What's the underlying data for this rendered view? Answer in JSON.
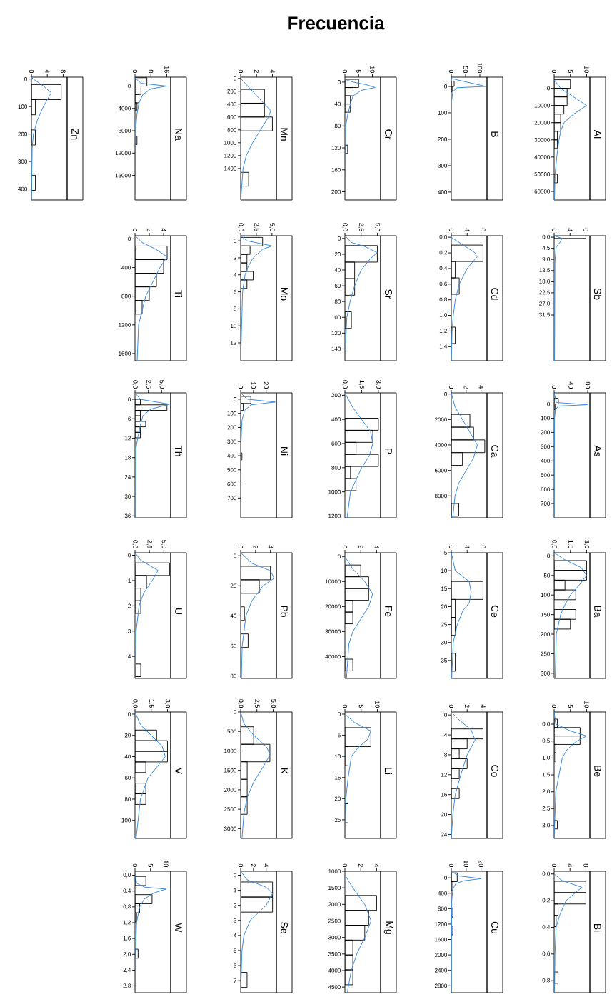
{
  "chart_data": [
    {
      "type": "histogram",
      "orientation": "horizontal",
      "title": "Zn",
      "color": "#000000",
      "bins": [
        20,
        75,
        130,
        185,
        240,
        295,
        350,
        405
      ],
      "values": [
        7.5,
        1,
        0,
        1,
        0,
        0,
        1
      ],
      "xlim": [
        0,
        9
      ],
      "xticks": [
        0,
        4,
        8
      ],
      "ylim": [
        440,
        -7
      ],
      "yticks": [
        0,
        100,
        200,
        300,
        400
      ],
      "series": [
        {
          "type": "line",
          "color": "#3b8de0",
          "x": [
            -7,
            0,
            25,
            50,
            75,
            100,
            150,
            200,
            250,
            440
          ],
          "values": [
            0,
            0.5,
            3,
            5,
            4,
            3,
            1.5,
            0.5,
            0.2,
            0
          ]
        }
      ]
    },
    {
      "type": "histogram",
      "orientation": "horizontal",
      "title": "Na",
      "color": "#000000",
      "bins": [
        -1500,
        0,
        1500,
        3000,
        4500,
        6000,
        7500,
        9000,
        10500
      ],
      "values": [
        6,
        3,
        2,
        1,
        0,
        0,
        0,
        1
      ],
      "xlim": [
        0,
        18
      ],
      "xticks": [
        0,
        8,
        16
      ],
      "ylim": [
        20400,
        -1600
      ],
      "yticks": [
        0,
        4000,
        8000,
        12000,
        16000
      ],
      "series": [
        {
          "type": "line",
          "color": "#3b8de0",
          "x": [
            -1500,
            -500,
            0,
            500,
            1500,
            3000,
            5000,
            8000,
            20400
          ],
          "values": [
            0,
            3,
            16,
            8,
            4,
            2,
            1,
            0.3,
            0
          ]
        }
      ]
    },
    {
      "type": "histogram",
      "orientation": "horizontal",
      "title": "Mn",
      "color": "#000000",
      "bins": [
        170,
        385,
        600,
        815,
        1030,
        1245,
        1460,
        1675
      ],
      "values": [
        3,
        3,
        4,
        0,
        0,
        0,
        1
      ],
      "xlim": [
        0,
        4.5
      ],
      "xticks": [
        0,
        2,
        4
      ],
      "ylim": [
        1890,
        -20
      ],
      "yticks": [
        0,
        200,
        400,
        600,
        800,
        1000,
        1200,
        1400
      ],
      "series": [
        {
          "type": "line",
          "color": "#3b8de0",
          "x": [
            0,
            200,
            400,
            500,
            600,
            800,
            1000,
            1200,
            1400,
            1890
          ],
          "values": [
            0,
            1.5,
            3,
            3.8,
            3.5,
            2.5,
            1.5,
            0.7,
            0.3,
            0
          ]
        }
      ]
    },
    {
      "type": "histogram",
      "orientation": "horizontal",
      "title": "Cr",
      "xlabel": "Frecuencia",
      "color": "#000000",
      "bins": [
        -5,
        10,
        25,
        40,
        55,
        70,
        85,
        100,
        115,
        130
      ],
      "values": [
        5,
        3,
        2,
        2,
        0,
        0,
        0,
        0,
        1
      ],
      "xlim": [
        0,
        13
      ],
      "xticks": [
        0,
        5,
        10
      ],
      "ylim": [
        215,
        -9
      ],
      "yticks": [
        0,
        40,
        80,
        120,
        160,
        200
      ],
      "series": [
        {
          "type": "line",
          "color": "#3b8de0",
          "x": [
            -5,
            0,
            5,
            10,
            15,
            25,
            40,
            60,
            80,
            215
          ],
          "values": [
            0,
            3,
            8,
            11,
            6,
            3,
            2,
            1,
            0.3,
            0
          ]
        }
      ]
    },
    {
      "type": "histogram",
      "orientation": "horizontal",
      "title": "B",
      "color": "#000000",
      "bins": [
        -20,
        0,
        20
      ],
      "values": [
        10,
        3
      ],
      "xlim": [
        0,
        125
      ],
      "xticks": [
        0,
        50,
        100
      ],
      "ylim": [
        430,
        -35
      ],
      "yticks": [
        0,
        100,
        200,
        300,
        400
      ],
      "series": [
        {
          "type": "line",
          "color": "#3b8de0",
          "x": [
            -30,
            0,
            5,
            20,
            50
          ],
          "values": [
            0,
            120,
            20,
            5,
            2
          ]
        }
      ]
    },
    {
      "type": "histogram",
      "orientation": "horizontal",
      "title": "Al",
      "color": "#000000",
      "bins": [
        -5000,
        0,
        5000,
        10000,
        15000,
        20000,
        25000,
        30000,
        35000,
        40000,
        45000,
        50000,
        55000,
        60000,
        65000
      ],
      "values": [
        5,
        4,
        4,
        3,
        2,
        2,
        1,
        1,
        0,
        0,
        0,
        1,
        0,
        0
      ],
      "xlim": [
        0,
        11
      ],
      "xticks": [
        0,
        5,
        10
      ],
      "ylim": [
        65000,
        -6500
      ],
      "yticks": [
        0,
        10000,
        20000,
        30000,
        40000,
        50000,
        60000
      ],
      "series": [
        {
          "type": "line",
          "color": "#3b8de0",
          "x": [
            -5000,
            0,
            5000,
            10000,
            15000,
            20000,
            25000,
            30000,
            40000,
            50000,
            65000
          ],
          "values": [
            0,
            2,
            6,
            10,
            6,
            3,
            2,
            1.5,
            0.8,
            0.3,
            0.1
          ]
        }
      ]
    },
    {
      "type": "histogram",
      "orientation": "horizontal",
      "title": "Ti",
      "color": "#000000",
      "bins": [
        100,
        290,
        480,
        670,
        860,
        1050
      ],
      "values": [
        4.5,
        4,
        3,
        2,
        1
      ],
      "xlim": [
        0,
        5
      ],
      "xticks": [
        0,
        2,
        4
      ],
      "ylim": [
        1700,
        -44
      ],
      "yticks": [
        0,
        400,
        800,
        1200,
        1600
      ],
      "series": [
        {
          "type": "line",
          "color": "#3b8de0",
          "x": [
            -44,
            50,
            150,
            250,
            400,
            600,
            800,
            1000,
            1200,
            1700
          ],
          "values": [
            0,
            1,
            3,
            4.5,
            3.5,
            2.5,
            1.5,
            1,
            0.5,
            0.3
          ]
        }
      ]
    },
    {
      "type": "histogram",
      "orientation": "horizontal",
      "title": "Mo",
      "color": "#000000",
      "bins": [
        -0.4,
        0.6,
        1.6,
        2.6,
        3.6,
        4.6,
        5.6
      ],
      "values": [
        3.5,
        1.5,
        1,
        1,
        2,
        1
      ],
      "xlim": [
        0,
        5.7
      ],
      "xticks": [
        {
          "value": 0,
          "label": "0,0"
        },
        {
          "value": 2.5,
          "label": "2,5"
        },
        {
          "value": 5,
          "label": "5,0"
        }
      ],
      "ylim": [
        14.1,
        -0.6
      ],
      "yticks": [
        0,
        2,
        4,
        6,
        8,
        10,
        12
      ],
      "series": [
        {
          "type": "line",
          "color": "#3b8de0",
          "x": [
            -0.6,
            0,
            0.6,
            1,
            2,
            3,
            4,
            6,
            14.1
          ],
          "values": [
            0,
            1,
            5,
            3.5,
            2,
            1.2,
            0.7,
            0.3,
            0
          ]
        }
      ]
    },
    {
      "type": "histogram",
      "orientation": "horizontal",
      "title": "Sr",
      "color": "#000000",
      "bins": [
        9,
        30,
        51,
        72,
        93,
        114
      ],
      "values": [
        5,
        1.5,
        1.5,
        0,
        1
      ],
      "xlim": [
        0,
        5.5
      ],
      "xticks": [
        {
          "value": 0,
          "label": "0,0"
        },
        {
          "value": 2.5,
          "label": "2,5"
        },
        {
          "value": 5,
          "label": "5,0"
        }
      ],
      "ylim": [
        155,
        -3.5
      ],
      "yticks": [
        0,
        20,
        40,
        60,
        80,
        100,
        120,
        140
      ],
      "series": [
        {
          "type": "line",
          "color": "#3b8de0",
          "x": [
            -3.5,
            5,
            10,
            18,
            25,
            40,
            60,
            80,
            100,
            155
          ],
          "values": [
            0,
            1,
            3,
            5,
            4,
            2.5,
            1.5,
            0.8,
            0.3,
            0
          ]
        }
      ]
    },
    {
      "type": "histogram",
      "orientation": "horizontal",
      "title": "Cd",
      "color": "#000000",
      "bins": [
        0.1,
        0.31,
        0.52,
        0.73,
        0.94,
        1.15,
        1.36
      ],
      "values": [
        8,
        1,
        2,
        0,
        0,
        1
      ],
      "xlim": [
        0,
        9
      ],
      "xticks": [
        0,
        4,
        8
      ],
      "ylim": [
        1.58,
        -0.02
      ],
      "yticks": [
        {
          "value": 0,
          "label": "0,0"
        },
        {
          "value": 0.2,
          "label": "0,2"
        },
        {
          "value": 0.4,
          "label": "0,4"
        },
        {
          "value": 0.6,
          "label": "0,6"
        },
        {
          "value": 0.8,
          "label": "0,8"
        },
        {
          "value": 1,
          "label": "1,0"
        },
        {
          "value": 1.2,
          "label": "1,2"
        },
        {
          "value": 1.4,
          "label": "1,4"
        }
      ],
      "series": [
        {
          "type": "line",
          "color": "#3b8de0",
          "x": [
            0,
            0.1,
            0.2,
            0.25,
            0.4,
            0.6,
            0.8,
            1,
            1.2,
            1.58
          ],
          "values": [
            0,
            3,
            6,
            6.5,
            4,
            2,
            1,
            0.5,
            0.2,
            0
          ]
        }
      ]
    },
    {
      "type": "histogram",
      "orientation": "horizontal",
      "title": "Sb",
      "color": "#000000",
      "bins": [
        -0.5,
        0.5
      ],
      "values": [
        8
      ],
      "xlim": [
        0,
        9
      ],
      "xticks": [
        0,
        4,
        8
      ],
      "ylim": [
        50,
        -0.6
      ],
      "yticks": [
        {
          "value": 0,
          "label": "0,0"
        },
        {
          "value": 4.5,
          "label": "4,5"
        },
        {
          "value": 9,
          "label": "9,0"
        },
        {
          "value": 13.5,
          "label": "13,5"
        },
        {
          "value": 18,
          "label": "18,0"
        },
        {
          "value": 22.5,
          "label": "22,5"
        },
        {
          "value": 27,
          "label": "27,0"
        },
        {
          "value": 31.5,
          "label": "31,5"
        }
      ],
      "series": [
        {
          "type": "line",
          "color": "#3b8de0",
          "x": [
            -0.6,
            0.5,
            2,
            4,
            10,
            50
          ],
          "values": [
            0,
            2,
            1.5,
            0.5,
            0.2,
            0.1
          ]
        }
      ]
    },
    {
      "type": "histogram",
      "orientation": "horizontal",
      "title": "Th",
      "color": "#000000",
      "bins": [
        0,
        1.7,
        3.4,
        5.1,
        6.8,
        8.5,
        10.2,
        11.9
      ],
      "values": [
        1,
        6,
        1,
        1,
        2,
        1,
        1
      ],
      "xlim": [
        0,
        6.7
      ],
      "xticks": [
        {
          "value": 0,
          "label": "0,0"
        },
        {
          "value": 2.5,
          "label": "2,5"
        },
        {
          "value": 5,
          "label": "5,0"
        }
      ],
      "ylim": [
        36.6,
        -2
      ],
      "yticks": [
        0,
        6,
        12,
        18,
        24,
        30,
        36
      ],
      "series": [
        {
          "type": "line",
          "color": "#3b8de0",
          "x": [
            -2,
            0,
            1.5,
            3,
            5,
            8,
            12,
            15,
            36.6
          ],
          "values": [
            0,
            1,
            6.5,
            3,
            1.5,
            1,
            0.5,
            0.2,
            0.1
          ]
        }
      ]
    },
    {
      "type": "histogram",
      "orientation": "horizontal",
      "title": "Ni",
      "color": "#000000",
      "bins": [
        -20,
        30,
        80,
        130,
        180,
        230,
        280,
        330,
        380,
        430,
        480
      ],
      "values": [
        8,
        2,
        0,
        0,
        0,
        0,
        0,
        0,
        1,
        0
      ],
      "xlim": [
        0,
        28
      ],
      "xticks": [
        0,
        10,
        20
      ],
      "ylim": [
        840,
        -45
      ],
      "yticks": [
        0,
        100,
        200,
        300,
        400,
        500,
        600,
        700
      ],
      "series": [
        {
          "type": "line",
          "color": "#3b8de0",
          "x": [
            -45,
            0,
            20,
            40,
            80,
            150,
            300,
            840
          ],
          "values": [
            0,
            5,
            27,
            8,
            3,
            1,
            0.3,
            0
          ]
        }
      ]
    },
    {
      "type": "histogram",
      "orientation": "horizontal",
      "title": "P",
      "color": "#000000",
      "bins": [
        390,
        490,
        590,
        690,
        790,
        890,
        990
      ],
      "values": [
        3,
        2.5,
        1,
        3,
        0.5,
        1
      ],
      "xlim": [
        0,
        3.2
      ],
      "xticks": [
        {
          "value": 0,
          "label": "0,0"
        },
        {
          "value": 1.5,
          "label": "1,5"
        },
        {
          "value": 3,
          "label": "3,0"
        }
      ],
      "ylim": [
        1215,
        180
      ],
      "yticks": [
        200,
        400,
        600,
        800,
        1000,
        1200
      ],
      "series": [
        {
          "type": "line",
          "color": "#3b8de0",
          "x": [
            180,
            300,
            400,
            500,
            600,
            700,
            800,
            900,
            1000,
            1215
          ],
          "values": [
            0,
            0.7,
            1.5,
            2.3,
            2.5,
            2.2,
            1.5,
            1,
            0.5,
            0.2
          ]
        }
      ]
    },
    {
      "type": "histogram",
      "orientation": "horizontal",
      "title": "Ca",
      "color": "#000000",
      "bins": [
        1600,
        2600,
        3600,
        4600,
        5600,
        6600,
        7600,
        8600,
        9600
      ],
      "values": [
        2.5,
        3,
        4.5,
        1.5,
        0,
        0,
        0,
        1
      ],
      "xlim": [
        0,
        4.8
      ],
      "xticks": [
        0,
        2,
        4
      ],
      "ylim": [
        9720,
        -94
      ],
      "yticks": [
        0,
        2000,
        4000,
        6000,
        8000
      ],
      "series": [
        {
          "type": "line",
          "color": "#3b8de0",
          "x": [
            -94,
            1000,
            2000,
            3000,
            4000,
            5000,
            6000,
            7000,
            8000,
            9720
          ],
          "values": [
            0,
            0.5,
            1.5,
            2.5,
            3.5,
            3,
            2,
            1,
            0.5,
            0.2
          ]
        }
      ]
    },
    {
      "type": "histogram",
      "orientation": "horizontal",
      "title": "As",
      "color": "#000000",
      "bins": [
        -40,
        0,
        40
      ],
      "values": [
        10,
        3
      ],
      "xlim": [
        0,
        85
      ],
      "xticks": [
        0,
        40,
        80
      ],
      "ylim": [
        800,
        -78
      ],
      "yticks": [
        0,
        100,
        200,
        300,
        400,
        500,
        600,
        700
      ],
      "series": [
        {
          "type": "line",
          "color": "#3b8de0",
          "x": [
            -78,
            -10,
            5,
            15,
            40,
            100,
            800
          ],
          "values": [
            0,
            5,
            80,
            10,
            3,
            1,
            0
          ]
        }
      ]
    },
    {
      "type": "histogram",
      "orientation": "horizontal",
      "title": "U",
      "color": "#000000",
      "bins": [
        0.3,
        0.8,
        1.3,
        1.8,
        2.3,
        2.8,
        3.3,
        3.8,
        4.3,
        4.8
      ],
      "values": [
        6,
        2,
        1,
        1,
        0,
        0,
        0,
        0,
        1
      ],
      "xlim": [
        0,
        6.2
      ],
      "xticks": [
        {
          "value": 0,
          "label": "0,0"
        },
        {
          "value": 2.5,
          "label": "2,5"
        },
        {
          "value": 5,
          "label": "5,0"
        }
      ],
      "ylim": [
        4.87,
        -0.1
      ],
      "yticks": [
        0,
        1,
        2,
        3,
        4
      ],
      "series": [
        {
          "type": "line",
          "color": "#3b8de0",
          "x": [
            -0.1,
            0.2,
            0.6,
            1,
            1.5,
            2,
            3,
            4.87
          ],
          "values": [
            0,
            1,
            4,
            3,
            1.5,
            0.7,
            0.2,
            0
          ]
        }
      ]
    },
    {
      "type": "histogram",
      "orientation": "horizontal",
      "title": "Pb",
      "color": "#000000",
      "bins": [
        7,
        16,
        25,
        34,
        43,
        52,
        61
      ],
      "values": [
        4,
        2.5,
        0,
        0.5,
        0,
        1
      ],
      "xlim": [
        0,
        4.8
      ],
      "xticks": [
        0,
        2,
        4
      ],
      "ylim": [
        81.6,
        -2
      ],
      "yticks": [
        0,
        20,
        40,
        60,
        80
      ],
      "series": [
        {
          "type": "line",
          "color": "#3b8de0",
          "x": [
            -2,
            5,
            10,
            15,
            20,
            30,
            40,
            60,
            81.6
          ],
          "values": [
            0,
            1.5,
            4,
            4.5,
            3,
            1.5,
            0.7,
            0.2,
            0.1
          ]
        }
      ]
    },
    {
      "type": "histogram",
      "orientation": "horizontal",
      "title": "Fe",
      "color": "#000000",
      "bins": [
        3400,
        8100,
        12800,
        17500,
        22200,
        26900,
        31600,
        36300,
        41000,
        45700
      ],
      "values": [
        2,
        3,
        3,
        1,
        1,
        0,
        0,
        0,
        1
      ],
      "xlim": [
        0,
        4.5
      ],
      "xticks": [
        0,
        2,
        4
      ],
      "ylim": [
        48700,
        -1500
      ],
      "yticks": [
        0,
        10000,
        20000,
        30000,
        40000
      ],
      "series": [
        {
          "type": "line",
          "color": "#3b8de0",
          "x": [
            0,
            5000,
            10000,
            15000,
            20000,
            25000,
            30000,
            35000,
            48700
          ],
          "values": [
            0,
            1,
            2.5,
            3.5,
            3,
            2,
            1,
            0.5,
            0.2
          ]
        }
      ]
    },
    {
      "type": "histogram",
      "orientation": "horizontal",
      "title": "Ce",
      "color": "#000000",
      "bins": [
        13,
        18,
        23,
        28,
        33,
        38
      ],
      "values": [
        8,
        1,
        1,
        0,
        1
      ],
      "xlim": [
        0,
        9
      ],
      "xticks": [
        0,
        4,
        8
      ],
      "ylim": [
        40,
        5
      ],
      "yticks": [
        5,
        10,
        15,
        20,
        25,
        30,
        35
      ],
      "series": [
        {
          "type": "line",
          "color": "#3b8de0",
          "x": [
            5,
            10,
            13,
            16,
            19,
            21,
            25,
            30,
            40
          ],
          "values": [
            0,
            1,
            4.5,
            5,
            4.5,
            3,
            1.5,
            0.5,
            0.1
          ]
        }
      ]
    },
    {
      "type": "histogram",
      "orientation": "horizontal",
      "title": "Ba",
      "color": "#000000",
      "bins": [
        12,
        37,
        62,
        87,
        112,
        137,
        162,
        187
      ],
      "values": [
        3,
        3,
        1,
        2,
        0,
        2,
        1.5
      ],
      "xlim": [
        0,
        3.3
      ],
      "xticks": [
        {
          "value": 0,
          "label": "0,0"
        },
        {
          "value": 1.5,
          "label": "1,5"
        },
        {
          "value": 3,
          "label": "3,0"
        }
      ],
      "ylim": [
        313,
        -8
      ],
      "yticks": [
        0,
        50,
        100,
        150,
        200,
        250,
        300
      ],
      "series": [
        {
          "type": "line",
          "color": "#3b8de0",
          "x": [
            -8,
            10,
            30,
            50,
            75,
            100,
            125,
            150,
            200,
            313
          ],
          "values": [
            0,
            1,
            2.5,
            3,
            2.3,
            1.5,
            1,
            0.6,
            0.2,
            0.1
          ]
        }
      ]
    },
    {
      "type": "histogram",
      "orientation": "horizontal",
      "title": "V",
      "color": "#000000",
      "bins": [
        15,
        25,
        35,
        45,
        55,
        65,
        75,
        85
      ],
      "values": [
        2,
        3,
        3,
        1,
        0,
        1,
        1
      ],
      "xlim": [
        0,
        3.3
      ],
      "xticks": [
        {
          "value": 0,
          "label": "0,0"
        },
        {
          "value": 1.5,
          "label": "1,5"
        },
        {
          "value": 3,
          "label": "3,0"
        }
      ],
      "ylim": [
        117,
        -2
      ],
      "yticks": [
        0,
        20,
        40,
        60,
        80,
        100
      ],
      "series": [
        {
          "type": "line",
          "color": "#3b8de0",
          "x": [
            -2,
            10,
            20,
            30,
            40,
            50,
            60,
            80,
            117
          ],
          "values": [
            0,
            0.5,
            1.5,
            2.5,
            2.8,
            2,
            1.2,
            0.5,
            0.1
          ]
        }
      ]
    },
    {
      "type": "histogram",
      "orientation": "horizontal",
      "title": "K",
      "color": "#000000",
      "bins": [
        380,
        830,
        1280,
        1730,
        2180,
        2630
      ],
      "values": [
        2,
        4.5,
        1,
        1,
        1
      ],
      "xlim": [
        0,
        5.5
      ],
      "xticks": [
        {
          "value": 0,
          "label": "0,0"
        },
        {
          "value": 2.5,
          "label": "2,5"
        },
        {
          "value": 5,
          "label": "5,0"
        }
      ],
      "ylim": [
        3250,
        0
      ],
      "yticks": [
        0,
        500,
        1000,
        1500,
        2000,
        2500,
        3000
      ],
      "series": [
        {
          "type": "line",
          "color": "#3b8de0",
          "x": [
            0,
            300,
            600,
            900,
            1100,
            1400,
            1800,
            2200,
            2600,
            3250
          ],
          "values": [
            0,
            0.5,
            2,
            4,
            4.5,
            3.5,
            2,
            1,
            0.5,
            0.2
          ]
        }
      ]
    },
    {
      "type": "histogram",
      "orientation": "horizontal",
      "title": "Li",
      "color": "#000000",
      "bins": [
        3.2,
        7.7,
        12.2,
        16.7,
        21.2,
        25.7
      ],
      "values": [
        8,
        1,
        0,
        0,
        1
      ],
      "xlim": [
        0,
        11
      ],
      "xticks": [
        0,
        5,
        10
      ],
      "ylim": [
        29.4,
        -0.5
      ],
      "yticks": [
        0,
        5,
        10,
        15,
        20,
        25
      ],
      "series": [
        {
          "type": "line",
          "color": "#3b8de0",
          "x": [
            0,
            2,
            4,
            6,
            8,
            10,
            15,
            20,
            29.4
          ],
          "values": [
            0,
            3,
            8,
            7,
            4,
            2,
            1,
            0.3,
            0
          ]
        }
      ]
    },
    {
      "type": "histogram",
      "orientation": "horizontal",
      "title": "Co",
      "color": "#000000",
      "bins": [
        2.8,
        4.8,
        6.8,
        8.8,
        10.8,
        12.8,
        14.8,
        16.8
      ],
      "values": [
        4,
        2,
        1,
        2,
        1,
        0,
        1
      ],
      "xlim": [
        0,
        4.5
      ],
      "xticks": [
        0,
        2,
        4
      ],
      "ylim": [
        24.8,
        -0.6
      ],
      "yticks": [
        0,
        4,
        8,
        12,
        16,
        20,
        24
      ],
      "series": [
        {
          "type": "line",
          "color": "#3b8de0",
          "x": [
            -0.6,
            1,
            3,
            5,
            8,
            12,
            16,
            20,
            24.8
          ],
          "values": [
            0,
            1,
            2.5,
            3,
            2,
            1.2,
            0.5,
            0.2,
            0
          ]
        }
      ]
    },
    {
      "type": "histogram",
      "orientation": "horizontal",
      "title": "Be",
      "color": "#000000",
      "bins": [
        -0.15,
        0.1,
        0.35,
        0.6,
        0.85,
        1.1,
        1.35,
        1.6,
        1.85,
        2.1,
        2.35,
        2.6,
        2.85,
        3.1
      ],
      "values": [
        1,
        8,
        8,
        0.5,
        0.5,
        0,
        0,
        0,
        0,
        0,
        0,
        0,
        1
      ],
      "xlim": [
        0,
        11
      ],
      "xticks": [
        0,
        5,
        10
      ],
      "ylim": [
        3.38,
        -0.36
      ],
      "yticks": [
        {
          "value": 0,
          "label": "0,0"
        },
        {
          "value": 0.5,
          "label": "0,5"
        },
        {
          "value": 1,
          "label": "1,0"
        },
        {
          "value": 1.5,
          "label": "1,5"
        },
        {
          "value": 2,
          "label": "2,0"
        },
        {
          "value": 2.5,
          "label": "2,5"
        },
        {
          "value": 3,
          "label": "3,0"
        }
      ],
      "series": [
        {
          "type": "line",
          "color": "#3b8de0",
          "x": [
            -0.36,
            0,
            0.2,
            0.35,
            0.5,
            0.75,
            1,
            1.5,
            2,
            3.38
          ],
          "values": [
            0,
            0.5,
            5,
            10,
            7,
            4,
            2.5,
            1.5,
            0.5,
            0
          ]
        }
      ]
    },
    {
      "type": "histogram",
      "orientation": "horizontal",
      "title": "W",
      "color": "#000000",
      "bins": [
        0.03,
        0.26,
        0.49,
        0.72,
        0.95,
        1.18,
        1.41,
        1.64,
        1.87,
        2.1
      ],
      "values": [
        3.5,
        0,
        5.5,
        1.5,
        0.5,
        0,
        0,
        0,
        1
      ],
      "xlim": [
        0,
        11.5
      ],
      "xticks": [
        0,
        5,
        10
      ],
      "ylim": [
        2.97,
        -0.1
      ],
      "yticks": [
        {
          "value": 0,
          "label": "0,0"
        },
        {
          "value": 0.4,
          "label": "0,4"
        },
        {
          "value": 0.8,
          "label": "0,8"
        },
        {
          "value": 1.2,
          "label": "1,2"
        },
        {
          "value": 1.6,
          "label": "1,6"
        },
        {
          "value": 2,
          "label": "2,0"
        },
        {
          "value": 2.4,
          "label": "2,4"
        },
        {
          "value": 2.8,
          "label": "2,8"
        }
      ],
      "series": [
        {
          "type": "line",
          "color": "#3b8de0",
          "x": [
            -0.1,
            0.2,
            0.3,
            0.35,
            0.45,
            0.6,
            0.8,
            1.2,
            2,
            2.97
          ],
          "values": [
            0,
            0.5,
            3,
            10,
            6,
            3,
            1.5,
            0.5,
            0.2,
            0
          ]
        }
      ]
    },
    {
      "type": "histogram",
      "orientation": "horizontal",
      "title": "Se",
      "color": "#000000",
      "bins": [
        0.45,
        1.45,
        2.45,
        3.45,
        4.45,
        5.45,
        6.45,
        7.45
      ],
      "values": [
        5,
        5,
        0,
        0,
        0,
        0,
        1
      ],
      "xlim": [
        0,
        5.6
      ],
      "xticks": [
        0,
        2,
        4
      ],
      "ylim": [
        7.8,
        -0.26
      ],
      "yticks": [
        0,
        1,
        2,
        3,
        4,
        5,
        6,
        7
      ],
      "series": [
        {
          "type": "line",
          "color": "#3b8de0",
          "x": [
            -0.26,
            0.3,
            0.8,
            1.2,
            2,
            3,
            4,
            5,
            7.8
          ],
          "values": [
            0,
            1,
            4,
            5,
            4,
            1.5,
            0.5,
            0.2,
            0
          ]
        }
      ]
    },
    {
      "type": "histogram",
      "orientation": "horizontal",
      "title": "Mg",
      "color": "#000000",
      "bins": [
        1730,
        2180,
        2630,
        3080,
        3530,
        3980,
        4430
      ],
      "values": [
        4,
        3,
        2.5,
        1,
        1,
        1
      ],
      "xlim": [
        0,
        4.5
      ],
      "xticks": [
        0,
        2,
        4
      ],
      "ylim": [
        4670,
        1000
      ],
      "yticks": [
        1000,
        1500,
        2000,
        2500,
        3000,
        3500,
        4000,
        4500
      ],
      "series": [
        {
          "type": "line",
          "color": "#3b8de0",
          "x": [
            1113,
            1500,
            2000,
            2500,
            3000,
            3500,
            4000,
            4670
          ],
          "values": [
            0,
            1,
            2.5,
            3.3,
            2.5,
            1.5,
            0.8,
            0.3
          ]
        }
      ]
    },
    {
      "type": "histogram",
      "orientation": "horizontal",
      "title": "Cu",
      "color": "#000000",
      "bins": [
        -130,
        100,
        330,
        560,
        790,
        1020,
        1250,
        1480
      ],
      "values": [
        4,
        1,
        0,
        0,
        1,
        0,
        1
      ],
      "xlim": [
        0,
        24
      ],
      "xticks": [
        0,
        10,
        20
      ],
      "ylim": [
        2980,
        -170
      ],
      "yticks": [
        0,
        400,
        800,
        1200,
        1600,
        2000,
        2400,
        2800
      ],
      "series": [
        {
          "type": "line",
          "color": "#3b8de0",
          "x": [
            -170,
            -50,
            20,
            80,
            150,
            300,
            600,
            2980
          ],
          "values": [
            0,
            5,
            20,
            8,
            3,
            1,
            0.3,
            0
          ]
        }
      ]
    },
    {
      "type": "histogram",
      "orientation": "horizontal",
      "title": "Bi",
      "color": "#000000",
      "bins": [
        0.055,
        0.14,
        0.225,
        0.31,
        0.395,
        0.48,
        0.565,
        0.65,
        0.735,
        0.82
      ],
      "values": [
        8,
        8,
        1,
        0.5,
        0,
        0,
        0,
        0,
        1
      ],
      "xlim": [
        0,
        9
      ],
      "xticks": [
        0,
        4,
        8
      ],
      "ylim": [
        0.89,
        -0.02
      ],
      "yticks": [
        {
          "value": 0,
          "label": "0,0"
        },
        {
          "value": 0.2,
          "label": "0,2"
        },
        {
          "value": 0.4,
          "label": "0,4"
        },
        {
          "value": 0.6,
          "label": "0,6"
        },
        {
          "value": 0.8,
          "label": "0,8"
        }
      ],
      "series": [
        {
          "type": "line",
          "color": "#3b8de0",
          "x": [
            0,
            0.05,
            0.1,
            0.15,
            0.2,
            0.3,
            0.4,
            0.6,
            0.89
          ],
          "values": [
            0,
            2,
            7,
            5,
            3,
            1.5,
            0.5,
            0.2,
            0.1
          ]
        }
      ]
    }
  ]
}
